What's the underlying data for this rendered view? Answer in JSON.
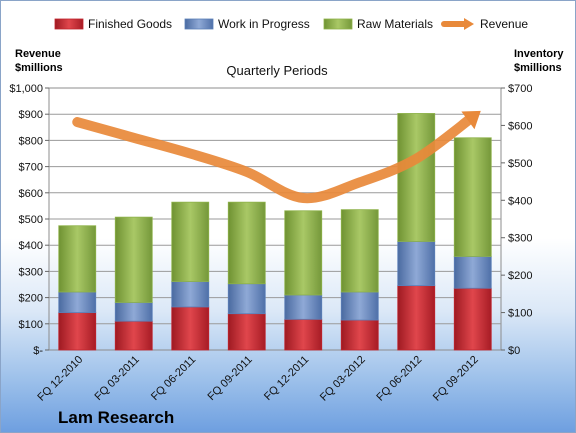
{
  "chart_data": {
    "type": "bar",
    "stacked": true,
    "title": "Quarterly Periods",
    "categories": [
      "FQ 12-2010",
      "FQ 03-2011",
      "FQ 06-2011",
      "FQ 09-2011",
      "FQ 12-2011",
      "FQ 03-2012",
      "FQ 06-2012",
      "FQ 09-2012"
    ],
    "series": [
      {
        "name": "Finished Goods",
        "axis": "right",
        "color": "#c0232c",
        "values": [
          100,
          77,
          115,
          97,
          82,
          80,
          172,
          165
        ]
      },
      {
        "name": "Work in Progress",
        "axis": "right",
        "color": "#5b7fb8",
        "values": [
          55,
          50,
          68,
          80,
          65,
          75,
          118,
          85
        ]
      },
      {
        "name": "Raw Materials",
        "axis": "right",
        "color": "#8eb24a",
        "values": [
          177,
          228,
          212,
          218,
          225,
          220,
          342,
          317
        ]
      },
      {
        "name": "Revenue",
        "axis": "left",
        "type": "line",
        "color": "#e8893a",
        "values": [
          870,
          810,
          750,
          680,
          580,
          640,
          730,
          890
        ]
      }
    ],
    "left_axis": {
      "label": "Revenue\n$millions",
      "ylim": [
        0,
        1000
      ],
      "ticks": [
        "$-",
        "$100",
        "$200",
        "$300",
        "$400",
        "$500",
        "$600",
        "$700",
        "$800",
        "$900",
        "$1,000"
      ]
    },
    "right_axis": {
      "label": "Inventory\n$millions",
      "ylim": [
        0,
        700
      ],
      "ticks": [
        "$0",
        "$100",
        "$200",
        "$300",
        "$400",
        "$500",
        "$600",
        "$700"
      ]
    },
    "legend_position": "top",
    "grid": true,
    "company": "Lam Research"
  }
}
